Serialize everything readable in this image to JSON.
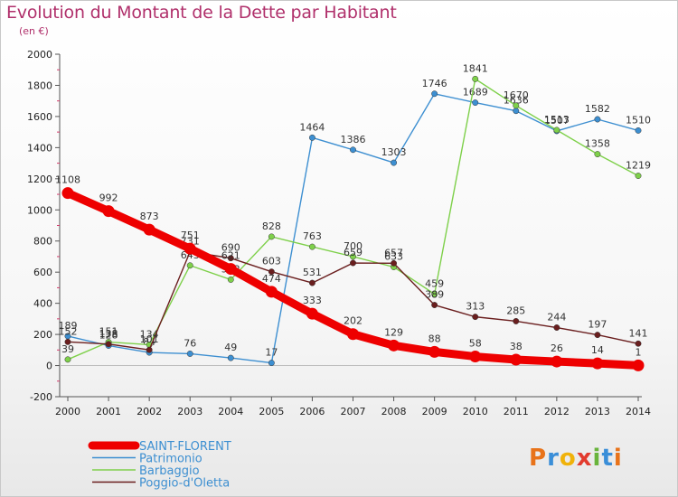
{
  "title": "Evolution du Montant de la Dette par Habitant",
  "unit": "(en €)",
  "brand": "Proxiti",
  "brand_colors": [
    "#e8731a",
    "#3a8ed8",
    "#f0b20a",
    "#e23b2e",
    "#69b43c",
    "#3a8ed8",
    "#e8731a"
  ],
  "chart_data": {
    "type": "line",
    "title": "Evolution du Montant de la Dette par Habitant",
    "ylabel": "(en €)",
    "xlabel": "",
    "x": [
      "2000",
      "2001",
      "2002",
      "2003",
      "2004",
      "2005",
      "2006",
      "2007",
      "2008",
      "2009",
      "2010",
      "2011",
      "2012",
      "2013",
      "2014"
    ],
    "ylim": [
      -200,
      2000
    ],
    "yticks": [
      "-200",
      "0",
      "200",
      "400",
      "600",
      "800",
      "1000",
      "1200",
      "1400",
      "1600",
      "1800",
      "2000"
    ],
    "grid": false,
    "legend": "bottom-left",
    "series": [
      {
        "name": "SAINT-FLORENT",
        "color": "#ee0000",
        "values": [
          1108,
          992,
          873,
          751,
          621,
          474,
          333,
          202,
          129,
          88,
          58,
          38,
          26,
          14,
          1
        ]
      },
      {
        "name": "Patrimonio",
        "color": "#3d8fd1",
        "values": [
          189,
          128,
          84,
          76,
          49,
          17,
          1464,
          1386,
          1303,
          1746,
          1689,
          1636,
          1507,
          1582,
          1510
        ]
      },
      {
        "name": "Barbaggio",
        "color": "#7ed04a",
        "values": [
          39,
          151,
          134,
          643,
          552,
          828,
          763,
          700,
          633,
          459,
          1841,
          1670,
          1513,
          1358,
          1219
        ]
      },
      {
        "name": "Poggio-d'Oletta",
        "color": "#6a1e1e",
        "values": [
          152,
          138,
          101,
          731,
          690,
          603,
          531,
          659,
          657,
          389,
          313,
          285,
          244,
          197,
          141
        ]
      }
    ]
  }
}
